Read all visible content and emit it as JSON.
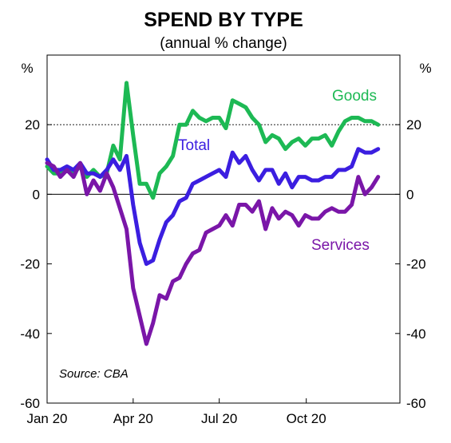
{
  "chart_data": {
    "type": "line",
    "title": "SPEND BY TYPE",
    "subtitle": "(annual % change)",
    "y_unit_left": "%",
    "y_unit_right": "%",
    "source": "Source: CBA",
    "ylim": [
      -60,
      40
    ],
    "y_ticks": [
      {
        "value": 20,
        "label": "20"
      },
      {
        "value": 0,
        "label": "0"
      },
      {
        "value": -20,
        "label": "-20"
      },
      {
        "value": -40,
        "label": "-40"
      },
      {
        "value": -60,
        "label": "-60"
      }
    ],
    "gridlines": [
      20,
      0
    ],
    "xlim": [
      "2020-01-01",
      "2021-01-08"
    ],
    "x_ticks": [
      {
        "value": "2020-01-01",
        "label": "Jan 20"
      },
      {
        "value": "2020-04-01",
        "label": "Apr 20"
      },
      {
        "value": "2020-07-01",
        "label": "Jul 20"
      },
      {
        "value": "2020-10-01",
        "label": "Oct 20"
      }
    ],
    "series": [
      {
        "name": "Goods",
        "color": "#1db954",
        "x": [
          "2020-01-01",
          "2020-01-08",
          "2020-01-15",
          "2020-01-22",
          "2020-01-29",
          "2020-02-05",
          "2020-02-12",
          "2020-02-19",
          "2020-02-26",
          "2020-03-04",
          "2020-03-11",
          "2020-03-18",
          "2020-03-25",
          "2020-04-01",
          "2020-04-08",
          "2020-04-15",
          "2020-04-22",
          "2020-04-29",
          "2020-05-06",
          "2020-05-13",
          "2020-05-20",
          "2020-05-27",
          "2020-06-03",
          "2020-06-10",
          "2020-06-17",
          "2020-06-24",
          "2020-07-01",
          "2020-07-08",
          "2020-07-15",
          "2020-07-22",
          "2020-07-29",
          "2020-08-05",
          "2020-08-12",
          "2020-08-19",
          "2020-08-26",
          "2020-09-02",
          "2020-09-09",
          "2020-09-16",
          "2020-09-23",
          "2020-09-30",
          "2020-10-07",
          "2020-10-14",
          "2020-10-21",
          "2020-10-28",
          "2020-11-04",
          "2020-11-11",
          "2020-11-18",
          "2020-11-25",
          "2020-12-02",
          "2020-12-09",
          "2020-12-16"
        ],
        "values": [
          8,
          6,
          6,
          7,
          6,
          8,
          5,
          7,
          5,
          6,
          14,
          10,
          32,
          17,
          3,
          3,
          -1,
          6,
          8,
          11,
          20,
          20,
          24,
          22,
          21,
          22,
          22,
          19,
          27,
          26,
          25,
          22,
          20,
          15,
          17,
          16,
          13,
          15,
          16,
          14,
          16,
          16,
          17,
          14,
          18,
          21,
          22,
          22,
          21,
          21,
          20
        ]
      },
      {
        "name": "Total",
        "color": "#3b1ee0",
        "x": [
          "2020-01-01",
          "2020-01-08",
          "2020-01-15",
          "2020-01-22",
          "2020-01-29",
          "2020-02-05",
          "2020-02-12",
          "2020-02-19",
          "2020-02-26",
          "2020-03-04",
          "2020-03-11",
          "2020-03-18",
          "2020-03-25",
          "2020-04-01",
          "2020-04-08",
          "2020-04-15",
          "2020-04-22",
          "2020-04-29",
          "2020-05-06",
          "2020-05-13",
          "2020-05-20",
          "2020-05-27",
          "2020-06-03",
          "2020-06-10",
          "2020-06-17",
          "2020-06-24",
          "2020-07-01",
          "2020-07-08",
          "2020-07-15",
          "2020-07-22",
          "2020-07-29",
          "2020-08-05",
          "2020-08-12",
          "2020-08-19",
          "2020-08-26",
          "2020-09-02",
          "2020-09-09",
          "2020-09-16",
          "2020-09-23",
          "2020-09-30",
          "2020-10-07",
          "2020-10-14",
          "2020-10-21",
          "2020-10-28",
          "2020-11-04",
          "2020-11-11",
          "2020-11-18",
          "2020-11-25",
          "2020-12-02",
          "2020-12-09",
          "2020-12-16"
        ],
        "values": [
          10,
          7,
          7,
          8,
          7,
          9,
          6,
          6,
          5,
          7,
          10,
          7,
          11,
          -3,
          -14,
          -20,
          -19,
          -13,
          -8,
          -6,
          -2,
          -1,
          3,
          4,
          5,
          6,
          7,
          5,
          12,
          9,
          11,
          7,
          4,
          7,
          7,
          3,
          6,
          2,
          5,
          5,
          4,
          4,
          5,
          5,
          7,
          7,
          8,
          13,
          12,
          12,
          13
        ]
      },
      {
        "name": "Services",
        "color": "#7a16a8",
        "x": [
          "2020-01-01",
          "2020-01-08",
          "2020-01-15",
          "2020-01-22",
          "2020-01-29",
          "2020-02-05",
          "2020-02-12",
          "2020-02-19",
          "2020-02-26",
          "2020-03-04",
          "2020-03-11",
          "2020-03-18",
          "2020-03-25",
          "2020-04-01",
          "2020-04-08",
          "2020-04-15",
          "2020-04-22",
          "2020-04-29",
          "2020-05-06",
          "2020-05-13",
          "2020-05-20",
          "2020-05-27",
          "2020-06-03",
          "2020-06-10",
          "2020-06-17",
          "2020-06-24",
          "2020-07-01",
          "2020-07-08",
          "2020-07-15",
          "2020-07-22",
          "2020-07-29",
          "2020-08-05",
          "2020-08-12",
          "2020-08-19",
          "2020-08-26",
          "2020-09-02",
          "2020-09-09",
          "2020-09-16",
          "2020-09-23",
          "2020-09-30",
          "2020-10-07",
          "2020-10-14",
          "2020-10-21",
          "2020-10-28",
          "2020-11-04",
          "2020-11-11",
          "2020-11-18",
          "2020-11-25",
          "2020-12-02",
          "2020-12-09",
          "2020-12-16"
        ],
        "values": [
          9,
          8,
          5,
          7,
          5,
          9,
          0,
          4,
          1,
          6,
          2,
          -4,
          -10,
          -27,
          -35,
          -43,
          -37,
          -29,
          -30,
          -25,
          -24,
          -20,
          -17,
          -16,
          -11,
          -10,
          -9,
          -6,
          -9,
          -3,
          -3,
          -5,
          -2,
          -10,
          -4,
          -7,
          -5,
          -6,
          -9,
          -6,
          -7,
          -7,
          -5,
          -4,
          -5,
          -5,
          -3,
          5,
          0,
          2,
          5
        ]
      }
    ],
    "annotations": [
      {
        "series": "Goods",
        "text": "Goods"
      },
      {
        "series": "Total",
        "text": "Total"
      },
      {
        "series": "Services",
        "text": "Services"
      }
    ]
  }
}
